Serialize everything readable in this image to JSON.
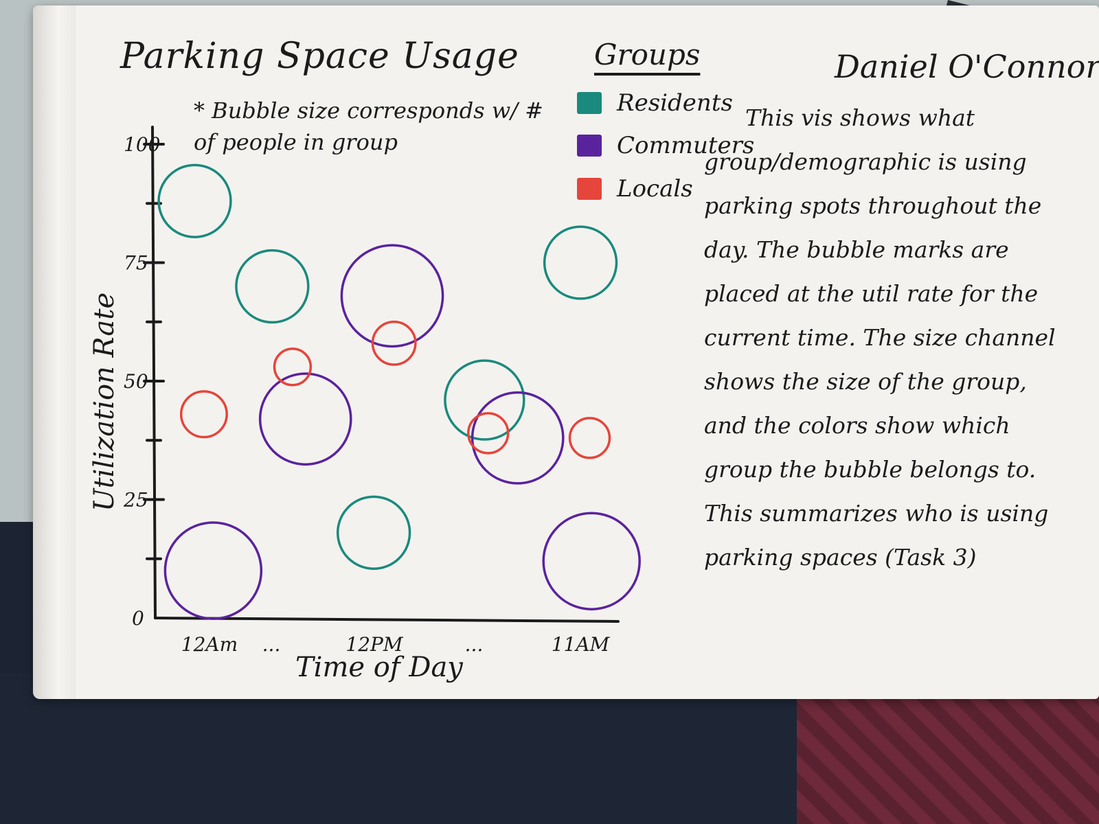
{
  "colors": {
    "residents": "#1a8a7c",
    "commuters": "#5a239e",
    "locals": "#e5453b"
  },
  "header": {
    "title": "Parking Space Usage",
    "note": "* Bubble size corresponds w/ # of people in group",
    "author": "Daniel O'Connor"
  },
  "legend": {
    "title": "Groups",
    "items": [
      {
        "label": "Residents",
        "color": "#1a8a7c"
      },
      {
        "label": "Commuters",
        "color": "#5a239e"
      },
      {
        "label": "Locals",
        "color": "#e5453b"
      }
    ]
  },
  "description": "This vis shows what group/demographic is using parking spots throughout the day. The bubble marks are placed at the util rate for the current time. The size channel shows the size of the group, and the colors show which group the bubble belongs to. This summarizes who is using parking spaces (Task 3)",
  "chart_data": {
    "type": "scatter",
    "encoding": "bubble",
    "title": "Parking Space Usage",
    "xlabel": "Time of Day",
    "ylabel": "Utilization Rate",
    "x_tick_labels": [
      "12Am",
      "...",
      "12PM",
      "...",
      "11AM"
    ],
    "y_tick_labels": [
      "0",
      "25",
      "50",
      "75",
      "100"
    ],
    "ylim": [
      0,
      100
    ],
    "x_domain": [
      0,
      23
    ],
    "grid": false,
    "legend_position": "top-right",
    "series": [
      {
        "name": "Residents",
        "color": "#1a8a7c",
        "points": [
          {
            "x": 0.8,
            "y": 88,
            "size": 2
          },
          {
            "x": 5.0,
            "y": 70,
            "size": 2
          },
          {
            "x": 10.5,
            "y": 18,
            "size": 2
          },
          {
            "x": 16.5,
            "y": 46,
            "size": 2.5
          },
          {
            "x": 21.7,
            "y": 75,
            "size": 2
          }
        ]
      },
      {
        "name": "Commuters",
        "color": "#5a239e",
        "points": [
          {
            "x": 1.8,
            "y": 10,
            "size": 4
          },
          {
            "x": 6.8,
            "y": 42,
            "size": 3.5
          },
          {
            "x": 11.5,
            "y": 68,
            "size": 4.5
          },
          {
            "x": 18.3,
            "y": 38,
            "size": 3.5
          },
          {
            "x": 22.3,
            "y": 12,
            "size": 4
          }
        ]
      },
      {
        "name": "Locals",
        "color": "#e5453b",
        "points": [
          {
            "x": 1.3,
            "y": 43,
            "size": 0.6
          },
          {
            "x": 6.1,
            "y": 53,
            "size": 0.3
          },
          {
            "x": 11.6,
            "y": 58,
            "size": 0.5
          },
          {
            "x": 16.7,
            "y": 39,
            "size": 0.4
          },
          {
            "x": 22.2,
            "y": 38,
            "size": 0.4
          }
        ]
      }
    ]
  }
}
